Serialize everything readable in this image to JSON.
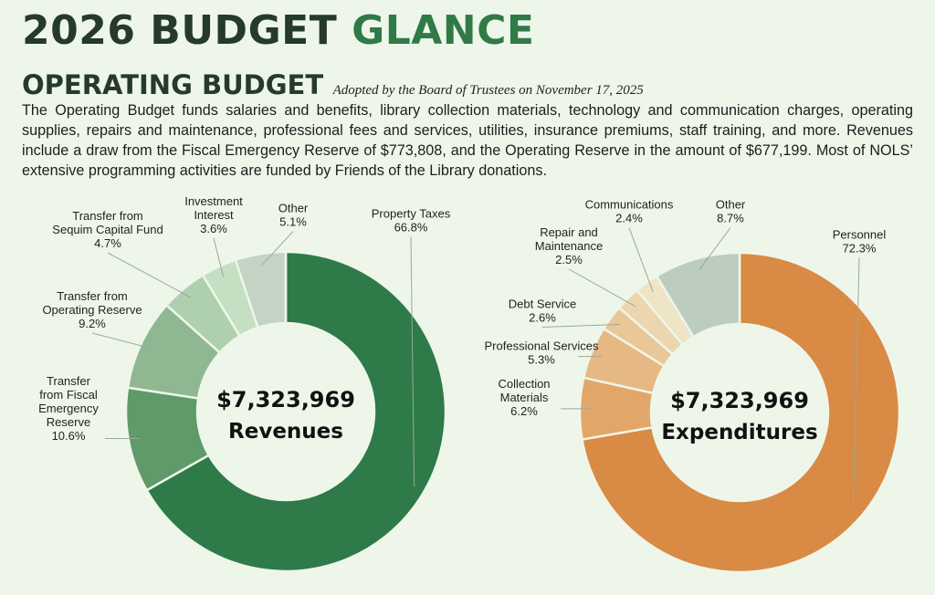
{
  "header": {
    "title_main": "2026 BUDGET",
    "title_accent": "GLANCE",
    "subtitle": "OPERATING BUDGET",
    "adopted_note": "Adopted by the Board of Trustees on November 17, 2025",
    "description": "The Operating Budget funds salaries and benefits, library collection materials, technology and communication charges, operating supplies, repairs and maintenance, professional fees and services, utilities, insurance premiums, staff training, and more. Revenues include a draw from the Fiscal Emergency Reserve of $773,808, and the Operating Reserve in the amount of $677,199. Most of NOLS’ extensive programming activities are funded by Friends of the Library donations."
  },
  "chart_data": [
    {
      "type": "pie",
      "variant": "donut",
      "title": "Revenues",
      "center_amount": "$7,323,969",
      "center_label": "Revenues",
      "start": "top",
      "direction": "clockwise",
      "slices": [
        {
          "label_lines": [
            "Property Taxes"
          ],
          "percent_text": "66.8%",
          "value": 66.8,
          "color": "#2e7a48"
        },
        {
          "label_lines": [
            "Transfer",
            "from Fiscal",
            "Emergency",
            "Reserve"
          ],
          "percent_text": "10.6%",
          "value": 10.6,
          "color": "#5e9a6a"
        },
        {
          "label_lines": [
            "Transfer from",
            "Operating Reserve"
          ],
          "percent_text": "9.2%",
          "value": 9.2,
          "color": "#8fb892"
        },
        {
          "label_lines": [
            "Transfer from",
            "Sequim Capital Fund"
          ],
          "percent_text": "4.7%",
          "value": 4.7,
          "color": "#aed0ae"
        },
        {
          "label_lines": [
            "Investment",
            "Interest"
          ],
          "percent_text": "3.6%",
          "value": 3.6,
          "color": "#c4dfc1"
        },
        {
          "label_lines": [
            "Other"
          ],
          "percent_text": "5.1%",
          "value": 5.1,
          "color": "#c3d3c4"
        }
      ]
    },
    {
      "type": "pie",
      "variant": "donut",
      "title": "Expenditures",
      "center_amount": "$7,323,969",
      "center_label": "Expenditures",
      "start": "top",
      "direction": "clockwise",
      "slices": [
        {
          "label_lines": [
            "Personnel"
          ],
          "percent_text": "72.3%",
          "value": 72.3,
          "color": "#d98a44"
        },
        {
          "label_lines": [
            "Collection",
            "Materials"
          ],
          "percent_text": "6.2%",
          "value": 6.2,
          "color": "#e2a768"
        },
        {
          "label_lines": [
            "Professional Services"
          ],
          "percent_text": "5.3%",
          "value": 5.3,
          "color": "#e6b984"
        },
        {
          "label_lines": [
            "Debt Service"
          ],
          "percent_text": "2.6%",
          "value": 2.6,
          "color": "#e9c796"
        },
        {
          "label_lines": [
            "Repair and",
            "Maintenance"
          ],
          "percent_text": "2.5%",
          "value": 2.5,
          "color": "#ecd6ad"
        },
        {
          "label_lines": [
            "Communications"
          ],
          "percent_text": "2.4%",
          "value": 2.4,
          "color": "#eee4c6"
        },
        {
          "label_lines": [
            "Other"
          ],
          "percent_text": "8.7%",
          "value": 8.7,
          "color": "#bccdbf"
        }
      ]
    }
  ]
}
